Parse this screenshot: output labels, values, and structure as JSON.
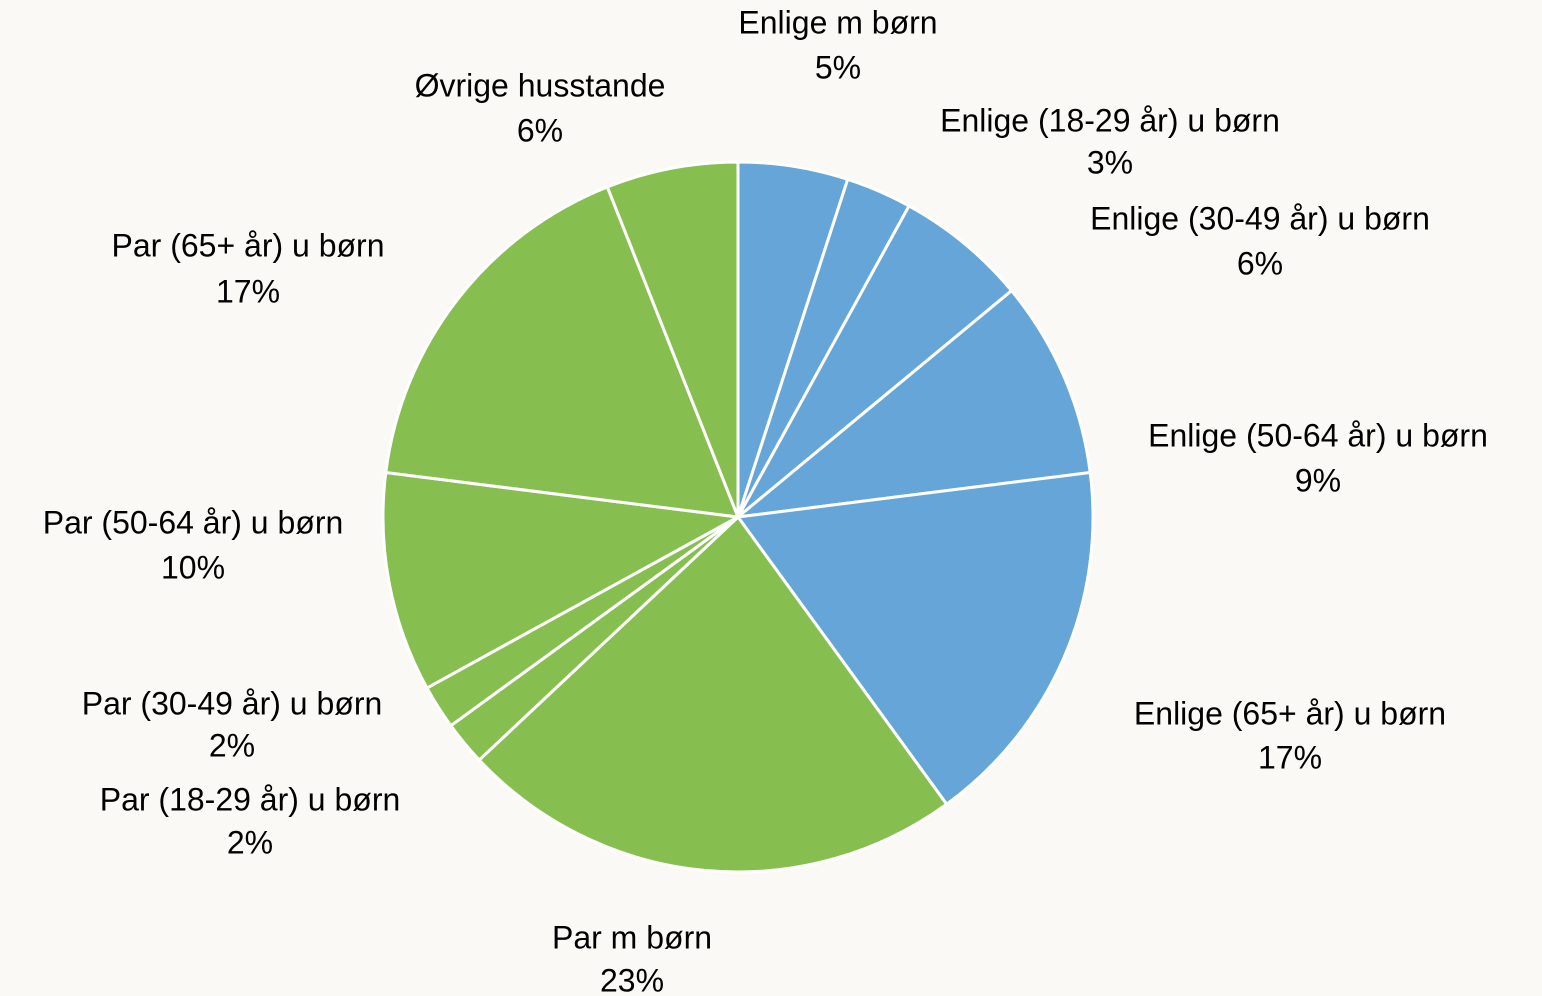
{
  "chart_data": {
    "type": "pie",
    "categories": [
      "Enlige m børn",
      "Enlige (18-29 år) u børn",
      "Enlige (30-49 år) u børn",
      "Enlige (50-64 år) u børn",
      "Enlige (65+ år) u børn",
      "Par m børn",
      "Par (18-29 år) u børn",
      "Par (30-49 år) u børn",
      "Par (50-64 år) u børn",
      "Par (65+ år) u børn",
      "Øvrige husstande"
    ],
    "values": [
      5,
      3,
      6,
      9,
      17,
      23,
      2,
      2,
      10,
      17,
      6
    ],
    "value_labels": [
      "5%",
      "3%",
      "6%",
      "9%",
      "17%",
      "23%",
      "2%",
      "2%",
      "10%",
      "17%",
      "6%"
    ],
    "colors": [
      "#65a5d8",
      "#65a5d8",
      "#65a5d8",
      "#65a5d8",
      "#65a5d8",
      "#86bf50",
      "#86bf50",
      "#86bf50",
      "#86bf50",
      "#86bf50",
      "#86bf50"
    ]
  }
}
